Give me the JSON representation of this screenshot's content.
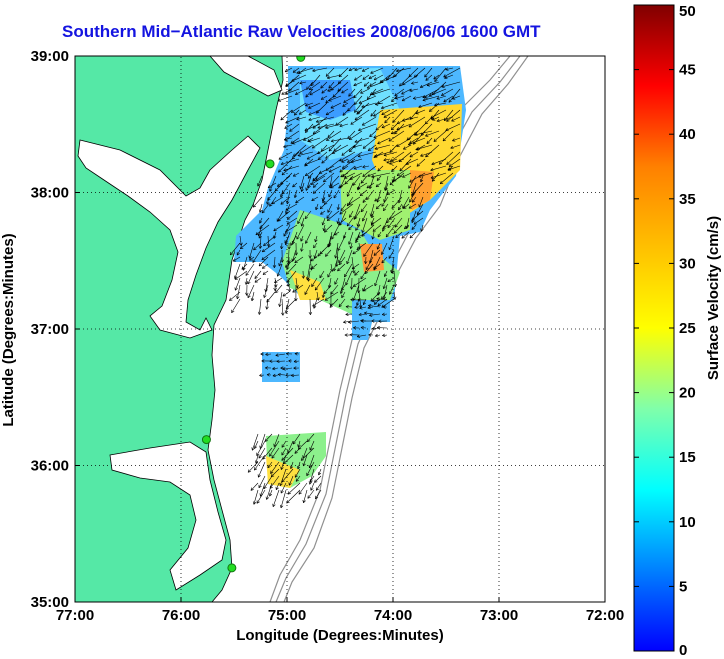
{
  "title": "Southern Mid−Atlantic Raw Velocities 2008/06/06 1600 GMT",
  "map": {
    "xlabel": "Longitude (Degrees:Minutes)",
    "ylabel": "Latitude (Degrees:Minutes)",
    "lon_range": [
      -77,
      -72
    ],
    "lat_range": [
      35,
      39
    ],
    "x_ticks": [
      "77:00",
      "76:00",
      "75:00",
      "74:00",
      "73:00",
      "72:00"
    ],
    "y_ticks": [
      "35:00",
      "36:00",
      "37:00",
      "38:00",
      "39:00"
    ],
    "grid": "dotted",
    "land_color": "#55e8a6",
    "coastline_color": "#000000",
    "bathymetry_color": "#909090",
    "station_color": "#22dd22",
    "stations": [
      {
        "lon": -74.87,
        "lat": 38.99
      },
      {
        "lon": -75.16,
        "lat": 38.21
      },
      {
        "lon": -75.76,
        "lat": 36.19
      },
      {
        "lon": -75.52,
        "lat": 35.25
      }
    ]
  },
  "colorbar": {
    "label": "Surface Velocity (cm/s)",
    "ticks": [
      "0",
      "5",
      "10",
      "15",
      "20",
      "25",
      "30",
      "35",
      "40",
      "45",
      "50"
    ],
    "range": [
      0,
      50
    ]
  }
}
